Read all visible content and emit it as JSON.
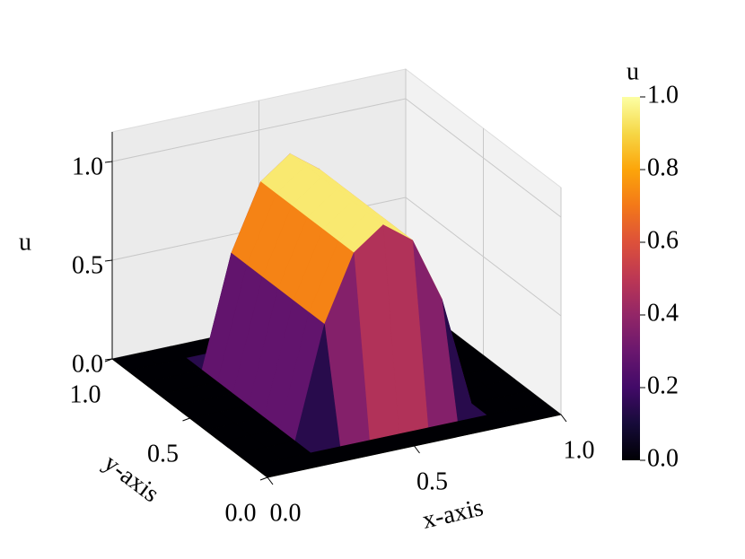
{
  "chart_data": {
    "type": "surface",
    "xlabel": "x-axis",
    "ylabel": "y-axis",
    "zlabel": "u",
    "colorbar_label": "u",
    "colormap": "inferno",
    "x": [
      0,
      0.1,
      0.2,
      0.3,
      0.4,
      0.5,
      0.6,
      0.7,
      0.8,
      0.9,
      1.0
    ],
    "y": [
      0,
      0.1,
      0.2,
      0.3,
      0.4,
      0.5,
      0.6,
      0.7,
      0.8,
      0.9,
      1.0
    ],
    "z": [
      [
        0,
        0,
        0,
        0,
        0,
        0,
        0,
        0,
        0,
        0,
        0
      ],
      [
        0,
        0,
        0,
        0,
        0,
        0,
        0,
        0,
        0,
        0,
        0
      ],
      [
        0,
        0,
        0,
        0.56,
        0.89,
        1.0,
        0.89,
        0.56,
        0,
        0,
        0
      ],
      [
        0,
        0,
        0,
        0.56,
        0.89,
        1.0,
        0.89,
        0.56,
        0,
        0,
        0
      ],
      [
        0,
        0,
        0,
        0.56,
        0.89,
        1.0,
        0.89,
        0.56,
        0,
        0,
        0
      ],
      [
        0,
        0,
        0,
        0.56,
        0.89,
        1.0,
        0.89,
        0.56,
        0,
        0,
        0
      ],
      [
        0,
        0,
        0,
        0.56,
        0.89,
        1.0,
        0.89,
        0.56,
        0,
        0,
        0
      ],
      [
        0,
        0,
        0,
        0.56,
        0.89,
        1.0,
        0.89,
        0.56,
        0,
        0,
        0
      ],
      [
        0,
        0,
        0,
        0.56,
        0.89,
        1.0,
        0.89,
        0.56,
        0,
        0,
        0
      ],
      [
        0,
        0,
        0,
        0,
        0,
        0,
        0,
        0,
        0,
        0,
        0
      ],
      [
        0,
        0,
        0,
        0,
        0,
        0,
        0,
        0,
        0,
        0,
        0
      ]
    ],
    "xlim": [
      0,
      1
    ],
    "ylim": [
      0,
      1
    ],
    "zlim": [
      0,
      1.15
    ],
    "clim": [
      0,
      1
    ],
    "xticks": [
      {
        "value": 0,
        "label": "0.0"
      },
      {
        "value": 0.5,
        "label": "0.5"
      },
      {
        "value": 1,
        "label": "1.0"
      }
    ],
    "yticks": [
      {
        "value": 0,
        "label": "0.0"
      },
      {
        "value": 0.5,
        "label": "0.5"
      },
      {
        "value": 1,
        "label": "1.0"
      }
    ],
    "zticks": [
      {
        "value": 0,
        "label": "0.0"
      },
      {
        "value": 0.5,
        "label": "0.5"
      },
      {
        "value": 1,
        "label": "1.0"
      }
    ],
    "cticks": [
      {
        "value": 0,
        "label": "0.0"
      },
      {
        "value": 0.2,
        "label": "0.2"
      },
      {
        "value": 0.4,
        "label": "0.4"
      },
      {
        "value": 0.6,
        "label": "0.6"
      },
      {
        "value": 0.8,
        "label": "0.8"
      },
      {
        "value": 1,
        "label": "1.0"
      }
    ],
    "grid": true
  }
}
